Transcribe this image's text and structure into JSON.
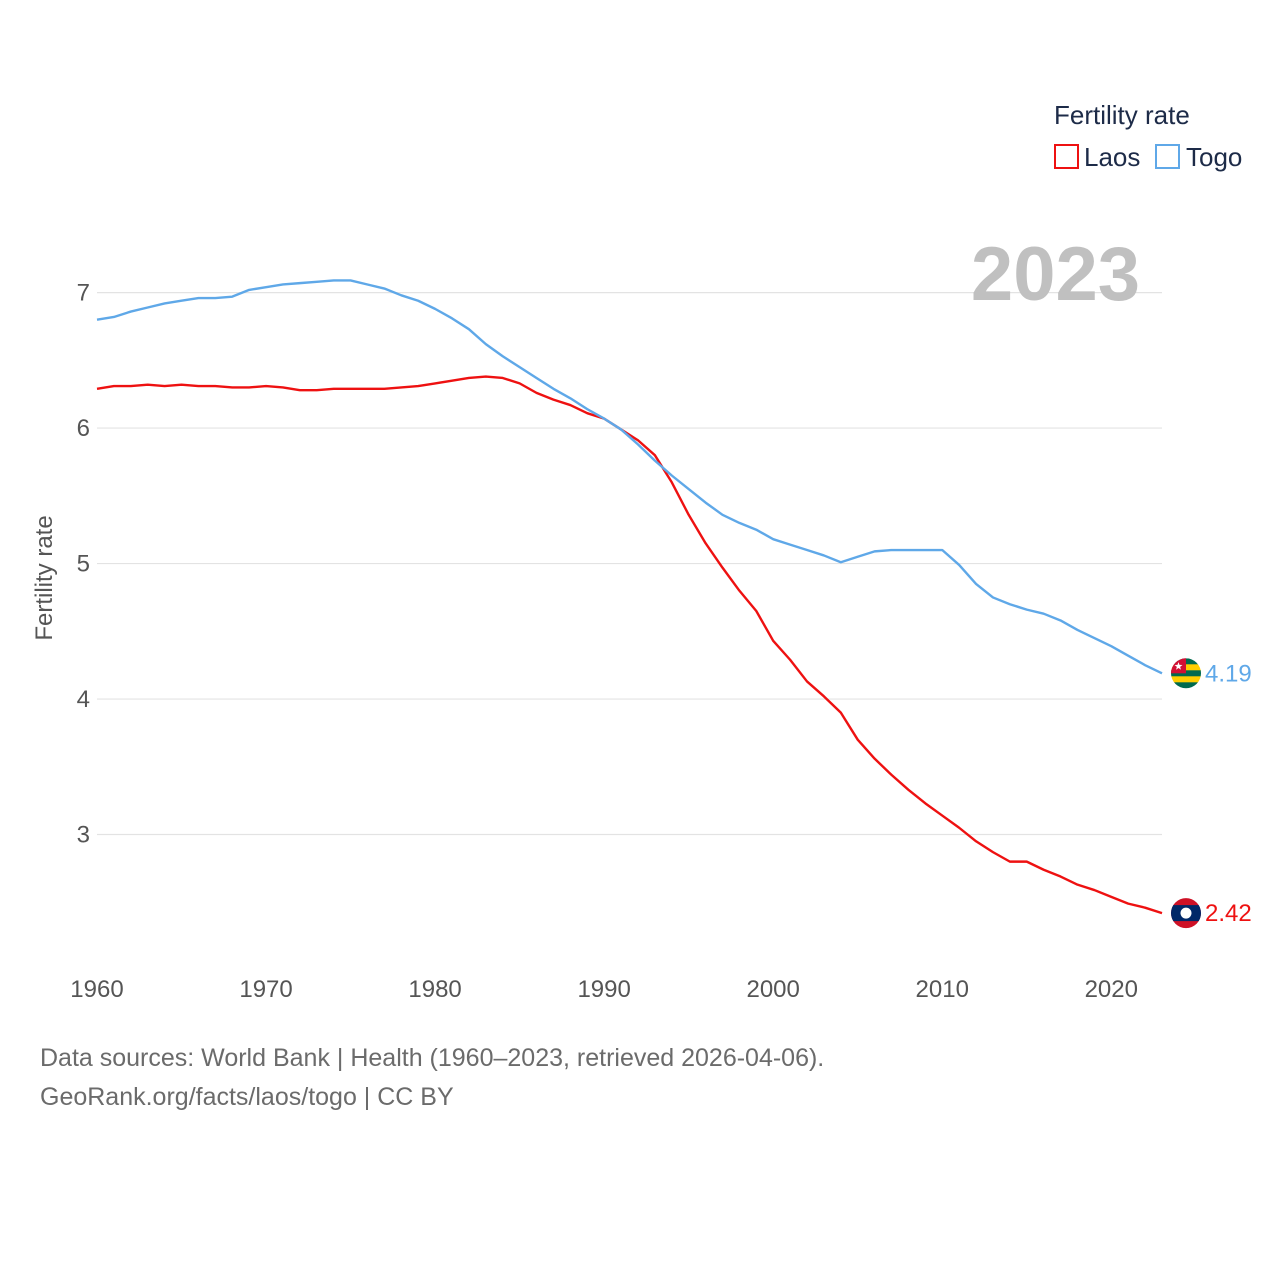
{
  "chart_data": {
    "type": "line",
    "legend_title": "Fertility rate",
    "ylabel": "Fertility rate",
    "year_label": "2023",
    "x_ticks": [
      1960,
      1970,
      1980,
      1990,
      2000,
      2010,
      2020
    ],
    "y_ticks": [
      3,
      4,
      5,
      6,
      7
    ],
    "xlim": [
      1960,
      2023
    ],
    "ylim": [
      2.0,
      7.75
    ],
    "series": [
      {
        "name": "Laos",
        "color": "#ee1111",
        "end_label": "2.42",
        "flag_icon": "laos-flag-icon",
        "x": [
          1960,
          1961,
          1962,
          1963,
          1964,
          1965,
          1966,
          1967,
          1968,
          1969,
          1970,
          1971,
          1972,
          1973,
          1974,
          1975,
          1976,
          1977,
          1978,
          1979,
          1980,
          1981,
          1982,
          1983,
          1984,
          1985,
          1986,
          1987,
          1988,
          1989,
          1990,
          1991,
          1992,
          1993,
          1994,
          1995,
          1996,
          1997,
          1998,
          1999,
          2000,
          2001,
          2002,
          2003,
          2004,
          2005,
          2006,
          2007,
          2008,
          2009,
          2010,
          2011,
          2012,
          2013,
          2014,
          2015,
          2016,
          2017,
          2018,
          2019,
          2020,
          2021,
          2022,
          2023
        ],
        "values": [
          6.29,
          6.31,
          6.31,
          6.32,
          6.31,
          6.32,
          6.31,
          6.31,
          6.3,
          6.3,
          6.31,
          6.3,
          6.28,
          6.28,
          6.29,
          6.29,
          6.29,
          6.29,
          6.3,
          6.31,
          6.33,
          6.35,
          6.37,
          6.38,
          6.37,
          6.33,
          6.26,
          6.21,
          6.17,
          6.11,
          6.07,
          5.99,
          5.91,
          5.8,
          5.6,
          5.36,
          5.15,
          4.97,
          4.8,
          4.65,
          4.43,
          4.29,
          4.13,
          4.02,
          3.9,
          3.7,
          3.56,
          3.44,
          3.33,
          3.23,
          3.14,
          3.05,
          2.95,
          2.87,
          2.8,
          2.8,
          2.74,
          2.69,
          2.63,
          2.59,
          2.54,
          2.49,
          2.46,
          2.42
        ]
      },
      {
        "name": "Togo",
        "color": "#5fa8e8",
        "end_label": "4.19",
        "flag_icon": "togo-flag-icon",
        "x": [
          1960,
          1961,
          1962,
          1963,
          1964,
          1965,
          1966,
          1967,
          1968,
          1969,
          1970,
          1971,
          1972,
          1973,
          1974,
          1975,
          1976,
          1977,
          1978,
          1979,
          1980,
          1981,
          1982,
          1983,
          1984,
          1985,
          1986,
          1987,
          1988,
          1989,
          1990,
          1991,
          1992,
          1993,
          1994,
          1995,
          1996,
          1997,
          1998,
          1999,
          2000,
          2001,
          2002,
          2003,
          2004,
          2005,
          2006,
          2007,
          2008,
          2009,
          2010,
          2011,
          2012,
          2013,
          2014,
          2015,
          2016,
          2017,
          2018,
          2019,
          2020,
          2021,
          2022,
          2023
        ],
        "values": [
          6.8,
          6.82,
          6.86,
          6.89,
          6.92,
          6.94,
          6.96,
          6.96,
          6.97,
          7.02,
          7.04,
          7.06,
          7.07,
          7.08,
          7.09,
          7.09,
          7.06,
          7.03,
          6.98,
          6.94,
          6.88,
          6.81,
          6.73,
          6.62,
          6.53,
          6.45,
          6.37,
          6.29,
          6.22,
          6.14,
          6.07,
          5.99,
          5.88,
          5.76,
          5.65,
          5.55,
          5.45,
          5.36,
          5.3,
          5.25,
          5.18,
          5.14,
          5.1,
          5.06,
          5.01,
          5.05,
          5.09,
          5.1,
          5.1,
          5.1,
          5.1,
          4.99,
          4.85,
          4.75,
          4.7,
          4.66,
          4.63,
          4.58,
          4.51,
          4.45,
          4.39,
          4.32,
          4.25,
          4.19
        ]
      }
    ]
  },
  "footer": {
    "line1": "Data sources: World Bank | Health (1960–2023, retrieved 2026-04-06).",
    "line2": "GeoRank.org/facts/laos/togo | CC BY"
  }
}
